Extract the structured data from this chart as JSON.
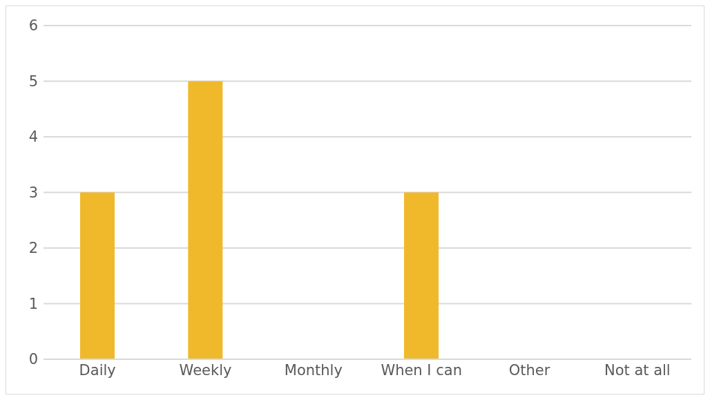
{
  "chart_data": {
    "type": "bar",
    "categories": [
      "Daily",
      "Weekly",
      "Monthly",
      "When I can",
      "Other",
      "Not at all"
    ],
    "values": [
      3,
      5,
      0,
      3,
      0,
      0
    ],
    "color": "#efb92b",
    "ylim": [
      0,
      6
    ],
    "yticks": [
      0,
      1,
      2,
      3,
      4,
      5,
      6
    ],
    "grid": "y"
  }
}
